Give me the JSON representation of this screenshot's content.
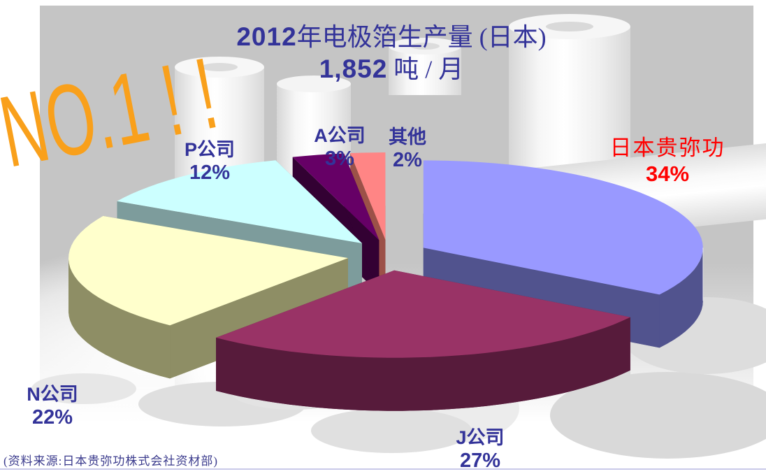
{
  "title": {
    "line1_num": "2012",
    "line1_cjk": "年电极箔生产量 (日本)",
    "line2_num": "1,852",
    "line2_cjk": " 吨 / 月"
  },
  "badge": {
    "text": "NO.1 ! !",
    "color": "#F9A01B"
  },
  "source_note": "(资料来源:日本贵弥功株式会社资材部)",
  "colors": {
    "title_text": "#333399",
    "label_text": "#333399",
    "highlight_text": "#FF0000",
    "badge_orange": "#F9A01B",
    "background_gray": "#C5C5C5",
    "bottom_rule": "#C9C9E9"
  },
  "chart_data": {
    "type": "pie",
    "three_d": true,
    "exploded": true,
    "title": "2012年电极箔生产量 (日本) 1,852 吨 / 月",
    "start_angle_deg": 0,
    "direction": "clockwise",
    "legend_position": "none",
    "slices": [
      {
        "label": "日本贵弥功",
        "value": 34,
        "pct_label": "34%",
        "top_color": "#9999FF",
        "side_color": "#51538E",
        "label_color": "#FF0000"
      },
      {
        "label": "J公司",
        "value": 27,
        "pct_label": "27%",
        "top_color": "#993366",
        "side_color": "#571B3B",
        "label_color": "#333399"
      },
      {
        "label": "N公司",
        "value": 22,
        "pct_label": "22%",
        "top_color": "#FFFFCC",
        "side_color": "#8E8E65",
        "label_color": "#333399"
      },
      {
        "label": "P公司",
        "value": 12,
        "pct_label": "12%",
        "top_color": "#CCFFFF",
        "side_color": "#7D9C9C",
        "label_color": "#333399"
      },
      {
        "label": "A公司",
        "value": 3,
        "pct_label": "3%",
        "top_color": "#660066",
        "side_color": "#330133",
        "label_color": "#333399"
      },
      {
        "label": "其他",
        "value": 2,
        "pct_label": "2%",
        "top_color": "#FF8585",
        "side_color": "#9C5148",
        "label_color": "#333399"
      }
    ]
  }
}
